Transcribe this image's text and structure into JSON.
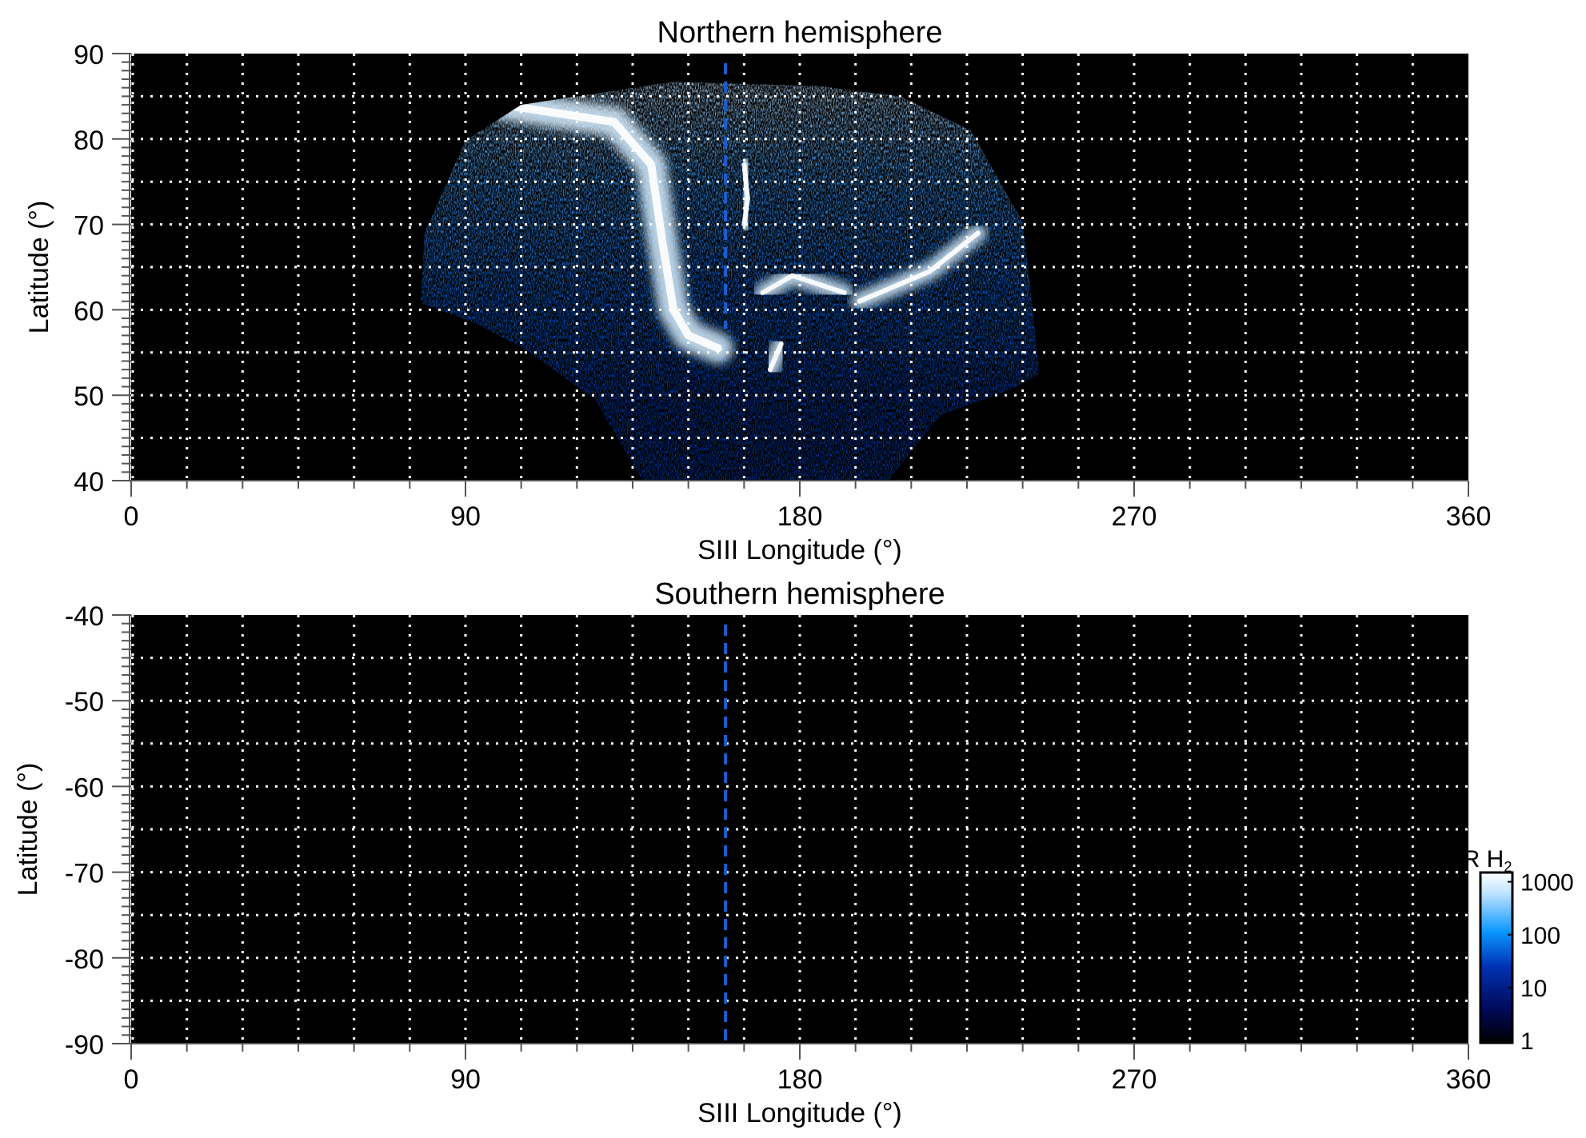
{
  "chart_data": [
    {
      "type": "heatmap",
      "title": "Northern hemisphere",
      "xlabel": "SIII Longitude (°)",
      "ylabel": "Latitude (°)",
      "xlim": [
        0,
        360
      ],
      "ylim": [
        40,
        90
      ],
      "xticks": [
        "0",
        "90",
        "180",
        "270",
        "360"
      ],
      "yticks": [
        "40",
        "50",
        "60",
        "70",
        "80",
        "90"
      ],
      "grid": true,
      "grid_style": "dotted white, every 15° longitude and 5° latitude",
      "reference_line_longitude": 160,
      "reference_line_color": "#1a5fd0",
      "emission_region_outline_lon_lat": [
        [
          78,
          61
        ],
        [
          79,
          69
        ],
        [
          90,
          79.8
        ],
        [
          105,
          84
        ],
        [
          120,
          85
        ],
        [
          146,
          86.7
        ],
        [
          185,
          86.2
        ],
        [
          207,
          85
        ],
        [
          226,
          81
        ],
        [
          240,
          70.3
        ],
        [
          242,
          63
        ],
        [
          244.5,
          52.5
        ],
        [
          237,
          50.7
        ],
        [
          218,
          47.7
        ],
        [
          207,
          41.8
        ],
        [
          204,
          40
        ],
        [
          137.6,
          40
        ],
        [
          125,
          49.5
        ],
        [
          106,
          55.4
        ],
        [
          93,
          58.4
        ],
        [
          78,
          60.8
        ]
      ],
      "bright_arcs_lon_lat": [
        [
          [
            100,
            84
          ],
          [
            130,
            82
          ],
          [
            140,
            77
          ],
          [
            143,
            68
          ],
          [
            146,
            60
          ],
          [
            150,
            57
          ],
          [
            158,
            55.5
          ]
        ],
        [
          [
            165,
            77
          ],
          [
            166,
            73
          ],
          [
            165,
            70
          ]
        ],
        [
          [
            228,
            69
          ],
          [
            215,
            64.5
          ],
          [
            196,
            61
          ]
        ],
        [
          [
            170,
            62
          ],
          [
            178,
            64
          ],
          [
            192,
            62
          ]
        ],
        [
          [
            175,
            56
          ],
          [
            172,
            53
          ]
        ]
      ]
    },
    {
      "type": "heatmap",
      "title": "Southern hemisphere",
      "xlabel": "SIII Longitude (°)",
      "ylabel": "Latitude (°)",
      "xlim": [
        0,
        360
      ],
      "ylim": [
        -90,
        -40
      ],
      "xticks": [
        "0",
        "90",
        "180",
        "270",
        "360"
      ],
      "yticks": [
        "-90",
        "-80",
        "-70",
        "-60",
        "-50",
        "-40"
      ],
      "grid": true,
      "reference_line_longitude": 160,
      "reference_line_color": "#1a5fd0"
    }
  ],
  "colorbar": {
    "label_main": "kR H",
    "label_sub": "2",
    "scale": "log",
    "range": [
      0.9,
      1500
    ],
    "ticks": [
      "1",
      "10",
      "100",
      "1000"
    ],
    "tick_values": [
      1,
      10,
      100,
      1000
    ],
    "colors": [
      "#000000",
      "#000a5a",
      "#0032b4",
      "#0a96ff",
      "#bfe4ff",
      "#ffffff"
    ],
    "position": "bottom-right"
  }
}
